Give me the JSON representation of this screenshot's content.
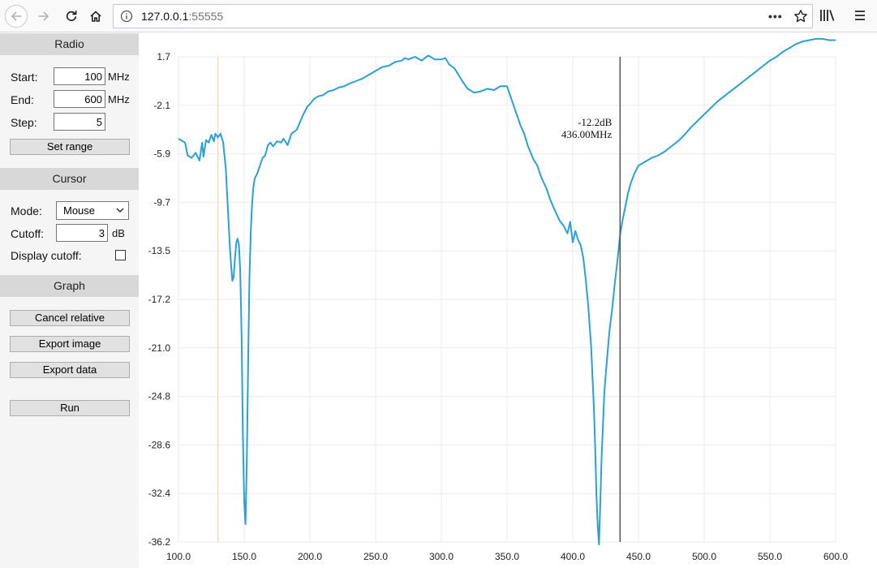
{
  "browser": {
    "url_host": "127.0.0.1",
    "url_port": ":55555",
    "more_glyph": "•••"
  },
  "radio": {
    "title": "Radio",
    "start_label": "Start:",
    "start_value": "100",
    "start_unit": "MHz",
    "end_label": "End:",
    "end_value": "600",
    "end_unit": "MHz",
    "step_label": "Step:",
    "step_value": "5",
    "set_range_label": "Set range"
  },
  "cursor": {
    "title": "Cursor",
    "mode_label": "Mode:",
    "mode_value": "Mouse",
    "cutoff_label": "Cutoff:",
    "cutoff_value": "3",
    "cutoff_unit": "dB",
    "display_cutoff_label": "Display cutoff:",
    "display_cutoff_checked": false
  },
  "graph": {
    "title": "Graph",
    "cancel_relative_label": "Cancel relative",
    "export_image_label": "Export image",
    "export_data_label": "Export data",
    "run_label": "Run"
  },
  "colors": {
    "line": "#2c9fd3",
    "grid": "#ebebeb",
    "cursor": "#555555",
    "marker": "#f5c9a6"
  },
  "chart_data": {
    "type": "line",
    "xlim": [
      100,
      600
    ],
    "ylim": [
      -36.2,
      1.7
    ],
    "x_ticks": [
      "100.0",
      "150.0",
      "200.0",
      "250.0",
      "300.0",
      "350.0",
      "400.0",
      "450.0",
      "500.0",
      "550.0",
      "600.0"
    ],
    "y_ticks": [
      "1.7",
      "-2.1",
      "-5.9",
      "-9.7",
      "-13.5",
      "-17.2",
      "-21.0",
      "-24.8",
      "-28.6",
      "-32.4",
      "-36.2"
    ],
    "grid": true,
    "marker_x": 130,
    "cursor": {
      "x": 436,
      "y": -12.2,
      "label_db": "-12.2dB",
      "label_freq": "436.00MHz"
    },
    "series": [
      {
        "x": [
          100,
          105,
          107,
          110,
          113,
          116,
          118,
          119,
          121,
          123,
          125,
          127,
          128,
          130,
          132,
          134,
          136,
          138,
          139,
          140,
          141,
          142,
          143,
          144,
          145,
          146,
          147,
          148,
          149,
          150,
          151,
          152,
          153,
          154,
          155,
          156,
          157,
          158,
          160,
          162,
          164,
          166,
          168,
          170,
          172,
          175,
          178,
          180,
          183,
          186,
          190,
          195,
          198,
          200,
          203,
          206,
          210,
          214,
          218,
          222,
          226,
          230,
          235,
          240,
          245,
          250,
          255,
          260,
          265,
          270,
          272,
          275,
          280,
          285,
          290,
          295,
          300,
          303,
          306,
          310,
          313,
          316,
          320,
          325,
          330,
          335,
          340,
          345,
          350,
          352,
          355,
          358,
          360,
          363,
          366,
          370,
          373,
          376,
          380,
          383,
          386,
          390,
          393,
          396,
          398,
          400,
          402,
          404,
          406,
          408,
          410,
          412,
          414,
          416,
          417,
          418,
          419,
          420,
          421,
          422,
          423,
          424,
          426,
          428,
          430,
          432,
          434,
          436,
          438,
          440,
          442,
          444,
          447,
          450,
          455,
          460,
          465,
          470,
          475,
          480,
          485,
          490,
          495,
          500,
          505,
          510,
          515,
          520,
          525,
          530,
          535,
          540,
          545,
          550,
          555,
          560,
          565,
          570,
          575,
          580,
          585,
          590,
          595,
          600
        ],
        "values": [
          -4.7,
          -5.0,
          -6.0,
          -6.2,
          -5.8,
          -6.4,
          -5.0,
          -6.1,
          -4.8,
          -5.0,
          -4.4,
          -4.9,
          -4.3,
          -4.6,
          -4.3,
          -5.0,
          -7.0,
          -11.0,
          -13.0,
          -14.5,
          -15.8,
          -15.5,
          -14.0,
          -12.8,
          -12.5,
          -13.0,
          -15.0,
          -20.0,
          -28.0,
          -33.0,
          -34.8,
          -30.0,
          -22.0,
          -15.5,
          -12.0,
          -9.8,
          -8.5,
          -7.8,
          -7.4,
          -6.8,
          -6.2,
          -6.0,
          -5.2,
          -5.0,
          -5.3,
          -4.9,
          -5.0,
          -4.7,
          -5.2,
          -4.3,
          -4.0,
          -2.8,
          -2.2,
          -2.0,
          -1.6,
          -1.4,
          -1.3,
          -1.0,
          -0.9,
          -0.7,
          -0.6,
          -0.4,
          -0.2,
          0.0,
          0.3,
          0.6,
          0.9,
          1.0,
          1.3,
          1.4,
          1.6,
          1.5,
          1.7,
          1.4,
          1.8,
          1.5,
          1.5,
          1.6,
          1.1,
          0.8,
          0.3,
          -0.2,
          -0.8,
          -1.1,
          -1.0,
          -0.8,
          -0.9,
          -0.6,
          -0.6,
          -1.2,
          -2.1,
          -3.0,
          -3.6,
          -4.3,
          -5.3,
          -6.3,
          -6.8,
          -7.7,
          -8.6,
          -9.5,
          -10.2,
          -11.1,
          -11.5,
          -12.1,
          -11.2,
          -12.8,
          -11.9,
          -12.6,
          -13.0,
          -14.0,
          -15.8,
          -18.0,
          -21.0,
          -25.5,
          -28.5,
          -32.5,
          -35.0,
          -36.4,
          -33.0,
          -29.5,
          -27.0,
          -24.5,
          -22.0,
          -19.6,
          -18.0,
          -16.0,
          -14.2,
          -12.2,
          -11.0,
          -10.0,
          -9.0,
          -8.2,
          -7.4,
          -6.8,
          -6.5,
          -6.2,
          -6.0,
          -5.7,
          -5.3,
          -4.9,
          -4.4,
          -3.8,
          -3.3,
          -2.8,
          -2.3,
          -1.8,
          -1.4,
          -1.0,
          -0.6,
          -0.2,
          0.2,
          0.6,
          1.0,
          1.4,
          1.7,
          2.1,
          2.4,
          2.7,
          2.9,
          3.0,
          3.1,
          3.1,
          3.0,
          3.0
        ]
      }
    ]
  }
}
